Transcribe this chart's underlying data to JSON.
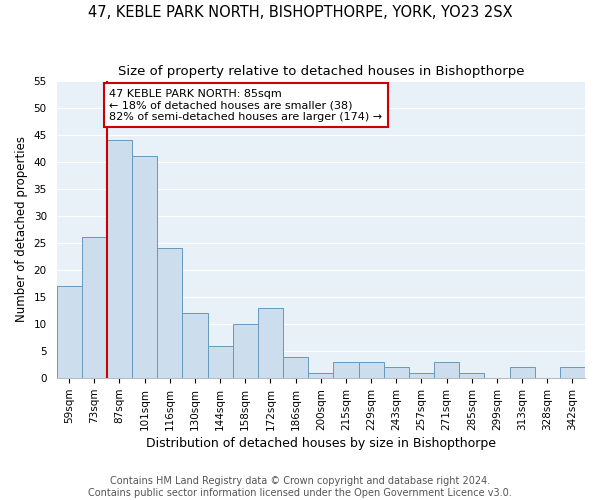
{
  "title": "47, KEBLE PARK NORTH, BISHOPTHORPE, YORK, YO23 2SX",
  "subtitle": "Size of property relative to detached houses in Bishopthorpe",
  "xlabel": "Distribution of detached houses by size in Bishopthorpe",
  "ylabel": "Number of detached properties",
  "bar_labels": [
    "59sqm",
    "73sqm",
    "87sqm",
    "101sqm",
    "116sqm",
    "130sqm",
    "144sqm",
    "158sqm",
    "172sqm",
    "186sqm",
    "200sqm",
    "215sqm",
    "229sqm",
    "243sqm",
    "257sqm",
    "271sqm",
    "285sqm",
    "299sqm",
    "313sqm",
    "328sqm",
    "342sqm"
  ],
  "bar_values": [
    17,
    26,
    44,
    41,
    24,
    12,
    6,
    10,
    13,
    4,
    1,
    3,
    3,
    2,
    1,
    3,
    1,
    0,
    2,
    0,
    2
  ],
  "bar_color": "#ccdded",
  "bar_edgecolor": "#6699bb",
  "bar_linewidth": 0.7,
  "vline_index": 2,
  "vline_color": "#cc0000",
  "annotation_lines": [
    "47 KEBLE PARK NORTH: 85sqm",
    "← 18% of detached houses are smaller (38)",
    "82% of semi-detached houses are larger (174) →"
  ],
  "annotation_box_edgecolor": "#cc0000",
  "ylim": [
    0,
    55
  ],
  "yticks": [
    0,
    5,
    10,
    15,
    20,
    25,
    30,
    35,
    40,
    45,
    50,
    55
  ],
  "footnote1": "Contains HM Land Registry data © Crown copyright and database right 2024.",
  "footnote2": "Contains public sector information licensed under the Open Government Licence v3.0.",
  "bg_color": "#ffffff",
  "plot_bg_color": "#e8f0f8",
  "grid_color": "#ffffff",
  "title_fontsize": 10.5,
  "subtitle_fontsize": 9.5,
  "xlabel_fontsize": 9,
  "ylabel_fontsize": 8.5,
  "tick_fontsize": 7.5,
  "annotation_fontsize": 8,
  "footnote_fontsize": 7
}
